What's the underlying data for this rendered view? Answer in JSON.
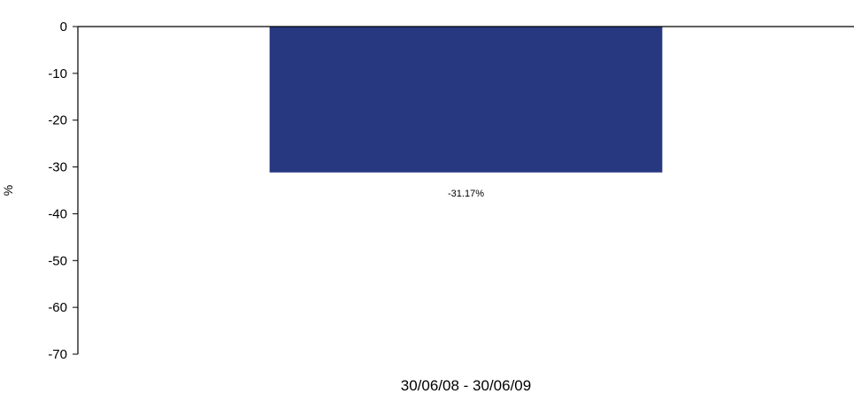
{
  "chart_data": {
    "type": "bar",
    "categories": [
      "30/06/08 - 30/06/09"
    ],
    "values": [
      -31.17
    ],
    "value_labels": [
      "-31.17%"
    ],
    "ylabel": "%",
    "ylim": [
      -70,
      0
    ],
    "yticks": [
      0,
      -10,
      -20,
      -30,
      -40,
      -50,
      -60,
      -70
    ],
    "grid": false,
    "legend": "none",
    "bar_color": "#283880"
  }
}
